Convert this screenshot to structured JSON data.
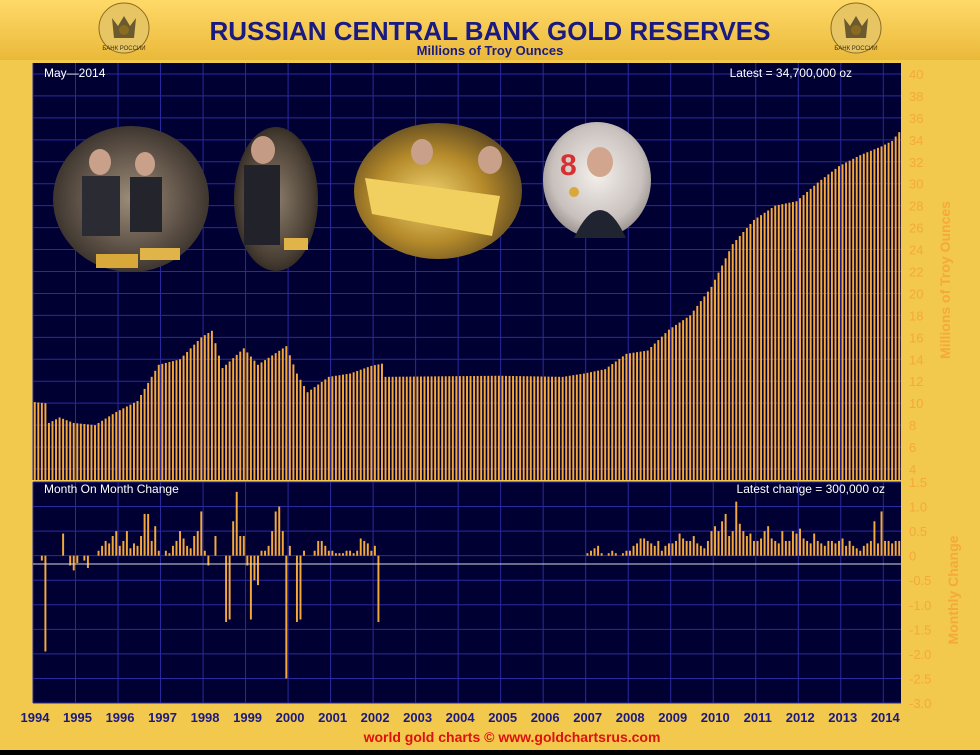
{
  "header": {
    "title": "RUSSIAN CENTRAL BANK GOLD RESERVES",
    "subtitle": "Millions of Troy Ounces",
    "emblem_text": "БАНК РОССИИ"
  },
  "footer": {
    "credit": "world gold charts © www.goldchartsrus.com"
  },
  "colors": {
    "frame_gold": "#f2c94c",
    "plot_bg": "#000033",
    "grid": "#2a2aa0",
    "bar": "#f4a93a",
    "title_text": "#1a1a80",
    "footer_text": "#e01010",
    "label_white": "#ffffff"
  },
  "photos": [
    {
      "name": "officials-with-gold-bars-photo"
    },
    {
      "name": "putin-holding-gold-bar-photo"
    },
    {
      "name": "gold-bar-closeup-photo"
    },
    {
      "name": "medvedev-holding-coin-photo"
    }
  ],
  "chart_data": [
    {
      "type": "bar",
      "title": "RUSSIAN CENTRAL BANK GOLD RESERVES",
      "subtitle": "Millions of Troy Ounces",
      "ylabel": "Millions of Troy Ounces",
      "date_label": "May—2014",
      "latest_label": "Latest = 34,700,000 oz",
      "ylim": [
        3,
        41
      ],
      "yticks": [
        4,
        6,
        8,
        10,
        12,
        14,
        16,
        18,
        20,
        22,
        24,
        26,
        28,
        30,
        32,
        34,
        36,
        38,
        40
      ],
      "xticks": [
        "1994",
        "1995",
        "1996",
        "1997",
        "1998",
        "1999",
        "2000",
        "2001",
        "2002",
        "2003",
        "2004",
        "2005",
        "2006",
        "2007",
        "2008",
        "2009",
        "2010",
        "2011",
        "2012",
        "2013",
        "2014"
      ],
      "frequency": "monthly",
      "start": "1994-01",
      "end": "2014-05",
      "anchors": [
        [
          "1994-01",
          10.1
        ],
        [
          "1994-04",
          10.0
        ],
        [
          "1994-05",
          8.2
        ],
        [
          "1994-08",
          8.7
        ],
        [
          "1994-12",
          8.2
        ],
        [
          "1995-06",
          8.0
        ],
        [
          "1995-12",
          9.2
        ],
        [
          "1996-06",
          10.2
        ],
        [
          "1996-12",
          13.5
        ],
        [
          "1997-06",
          14.0
        ],
        [
          "1997-12",
          16.0
        ],
        [
          "1998-03",
          16.6
        ],
        [
          "1998-06",
          13.2
        ],
        [
          "1998-12",
          15.0
        ],
        [
          "1999-04",
          13.5
        ],
        [
          "1999-12",
          15.2
        ],
        [
          "2000-03",
          12.7
        ],
        [
          "2000-06",
          11.0
        ],
        [
          "2000-12",
          12.4
        ],
        [
          "2001-06",
          12.7
        ],
        [
          "2001-12",
          13.4
        ],
        [
          "2002-03",
          13.6
        ],
        [
          "2002-04",
          12.4
        ],
        [
          "2004-12",
          12.5
        ],
        [
          "2006-06",
          12.4
        ],
        [
          "2006-12",
          12.7
        ],
        [
          "2007-06",
          13.1
        ],
        [
          "2007-12",
          14.5
        ],
        [
          "2008-06",
          14.8
        ],
        [
          "2008-12",
          16.7
        ],
        [
          "2009-06",
          18.0
        ],
        [
          "2009-12",
          20.6
        ],
        [
          "2010-06",
          24.5
        ],
        [
          "2010-12",
          26.7
        ],
        [
          "2011-06",
          28.0
        ],
        [
          "2011-12",
          28.4
        ],
        [
          "2012-06",
          30.1
        ],
        [
          "2012-12",
          31.6
        ],
        [
          "2013-06",
          32.6
        ],
        [
          "2013-12",
          33.4
        ],
        [
          "2014-03",
          33.9
        ],
        [
          "2014-05",
          34.7
        ]
      ]
    },
    {
      "type": "bar",
      "title": "Month On Month Change",
      "ylabel": "Monthly Change",
      "latest_label": "Latest change = 300,000 oz",
      "ylim": [
        -3.0,
        1.5
      ],
      "yticks": [
        1.5,
        1.0,
        0.5,
        0,
        -0.5,
        -1.0,
        -1.5,
        -2.0,
        -2.5,
        -3.0
      ],
      "changes": [
        0.0,
        0.0,
        -0.1,
        -1.95,
        0.0,
        0.0,
        0.0,
        0.0,
        0.45,
        0.0,
        -0.2,
        -0.3,
        -0.15,
        0.0,
        -0.1,
        -0.25,
        0.0,
        0.0,
        0.1,
        0.2,
        0.3,
        0.25,
        0.4,
        0.5,
        0.2,
        0.3,
        0.5,
        0.15,
        0.25,
        0.2,
        0.4,
        0.85,
        0.85,
        0.3,
        0.6,
        0.1,
        0.0,
        0.1,
        0.05,
        0.2,
        0.3,
        0.5,
        0.35,
        0.2,
        0.15,
        0.4,
        0.5,
        0.9,
        0.1,
        -0.2,
        0.0,
        0.4,
        0.0,
        0.0,
        -1.35,
        -1.3,
        0.7,
        1.3,
        0.4,
        0.4,
        -0.2,
        -1.3,
        -0.5,
        -0.6,
        0.1,
        0.1,
        0.2,
        0.5,
        0.9,
        1.0,
        0.5,
        -2.5,
        0.2,
        0.0,
        -1.35,
        -1.3,
        0.1,
        0.0,
        0.0,
        0.1,
        0.3,
        0.3,
        0.2,
        0.1,
        0.1,
        0.05,
        0.05,
        0.05,
        0.1,
        0.1,
        0.05,
        0.1,
        0.35,
        0.3,
        0.25,
        0.1,
        0.2,
        -1.35,
        0.0,
        0.0,
        0.0,
        0.0,
        0.0,
        0.0,
        0.0,
        0.0,
        0.0,
        0.0,
        0.0,
        0.0,
        0.0,
        0.0,
        0.0,
        0.0,
        0.0,
        0.0,
        0.0,
        0.0,
        0.0,
        0.0,
        0.0,
        0.0,
        0.0,
        0.0,
        0.0,
        0.0,
        0.0,
        0.0,
        0.0,
        0.0,
        0.0,
        0.0,
        0.0,
        0.0,
        0.0,
        0.0,
        0.0,
        0.0,
        0.0,
        0.0,
        0.0,
        0.0,
        0.0,
        0.0,
        0.0,
        0.0,
        0.0,
        0.0,
        0.0,
        0.0,
        0.0,
        0.0,
        0.0,
        0.0,
        0.0,
        0.0,
        0.05,
        0.1,
        0.15,
        0.2,
        0.05,
        0.0,
        0.05,
        0.1,
        0.05,
        0.0,
        0.05,
        0.1,
        0.1,
        0.2,
        0.25,
        0.35,
        0.35,
        0.3,
        0.25,
        0.2,
        0.3,
        0.1,
        0.2,
        0.25,
        0.25,
        0.3,
        0.45,
        0.35,
        0.3,
        0.3,
        0.4,
        0.25,
        0.2,
        0.15,
        0.3,
        0.5,
        0.6,
        0.5,
        0.7,
        0.85,
        0.4,
        0.5,
        1.1,
        0.65,
        0.5,
        0.4,
        0.45,
        0.3,
        0.3,
        0.35,
        0.5,
        0.6,
        0.35,
        0.3,
        0.25,
        0.5,
        0.3,
        0.3,
        0.5,
        0.45,
        0.55,
        0.35,
        0.3,
        0.25,
        0.45,
        0.3,
        0.25,
        0.2,
        0.3,
        0.3,
        0.25,
        0.3,
        0.35,
        0.2,
        0.3,
        0.2,
        0.15,
        0.1,
        0.2,
        0.25,
        0.3,
        0.7,
        0.25,
        0.9,
        0.3,
        0.3,
        0.25,
        0.3,
        0.3
      ],
      "notable_changes": [
        [
          "1994-04",
          -1.95
        ],
        [
          "1998-07",
          -1.35
        ],
        [
          "1998-08",
          -1.3
        ],
        [
          "1998-11",
          1.3
        ],
        [
          "1999-02",
          -1.3
        ],
        [
          "1999-12",
          -2.5
        ],
        [
          "2000-03",
          -1.35
        ],
        [
          "2000-04",
          -1.3
        ],
        [
          "2002-04",
          -1.35
        ],
        [
          "2010-07",
          1.1
        ],
        [
          "2014-03",
          0.9
        ],
        [
          "2014-05",
          0.3
        ]
      ]
    }
  ]
}
